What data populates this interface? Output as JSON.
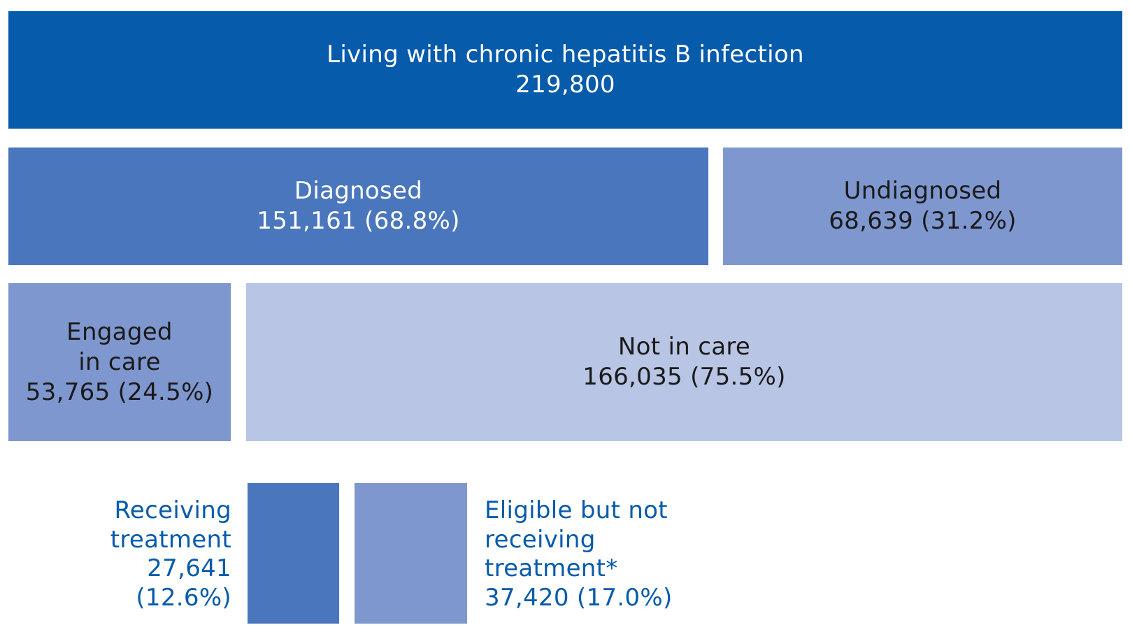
{
  "total": {
    "label": "Living with chronic hepatitis B infection",
    "value": "219,800",
    "color": "#065bab"
  },
  "diagnosed": {
    "label": "Diagnosed",
    "value": "151,161 (68.8%)",
    "color": "#4976bc"
  },
  "undiagnosed": {
    "label": "Undiagnosed",
    "value": "68,639 (31.2%)",
    "color": "#7f97cf"
  },
  "engaged": {
    "label_line1": "Engaged",
    "label_line2": "in care",
    "value": "53,765 (24.5%)",
    "color": "#7f97cf"
  },
  "not_in_care": {
    "label": "Not in care",
    "value": "166,035 (75.5%)",
    "color": "#b8c5e4"
  },
  "receiving_treatment": {
    "label_line1": "Receiving",
    "label_line2": "treatment",
    "value": "27,641",
    "percent": "(12.6%)",
    "color": "#4976bc"
  },
  "eligible_not_receiving": {
    "label_line1": "Eligible but not",
    "label_line2": "receiving",
    "label_line3": "treatment*",
    "value": "37,420 (17.0%)",
    "color": "#7f97cf"
  }
}
